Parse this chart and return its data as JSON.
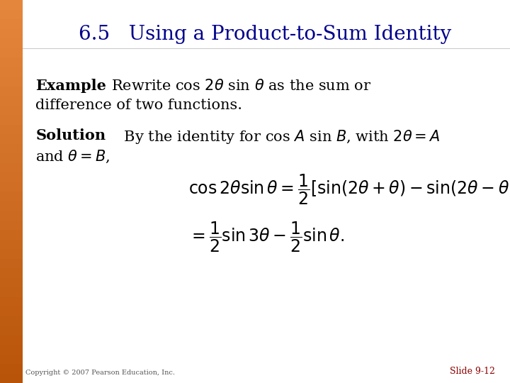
{
  "title": "6.5   Using a Product-to-Sum Identity",
  "title_color": "#00008B",
  "title_fontsize": 20,
  "background_color": "#FFFFFF",
  "left_bar_color": "#B8540A",
  "example_bold": "Example",
  "solution_bold": "Solution",
  "copyright": "Copyright © 2007 Pearson Education, Inc.",
  "slide_number": "Slide 9-12",
  "slide_number_color": "#8B0000",
  "text_color": "#000000",
  "body_fontsize": 14,
  "n_strips": 40,
  "bar_width": 0.045
}
